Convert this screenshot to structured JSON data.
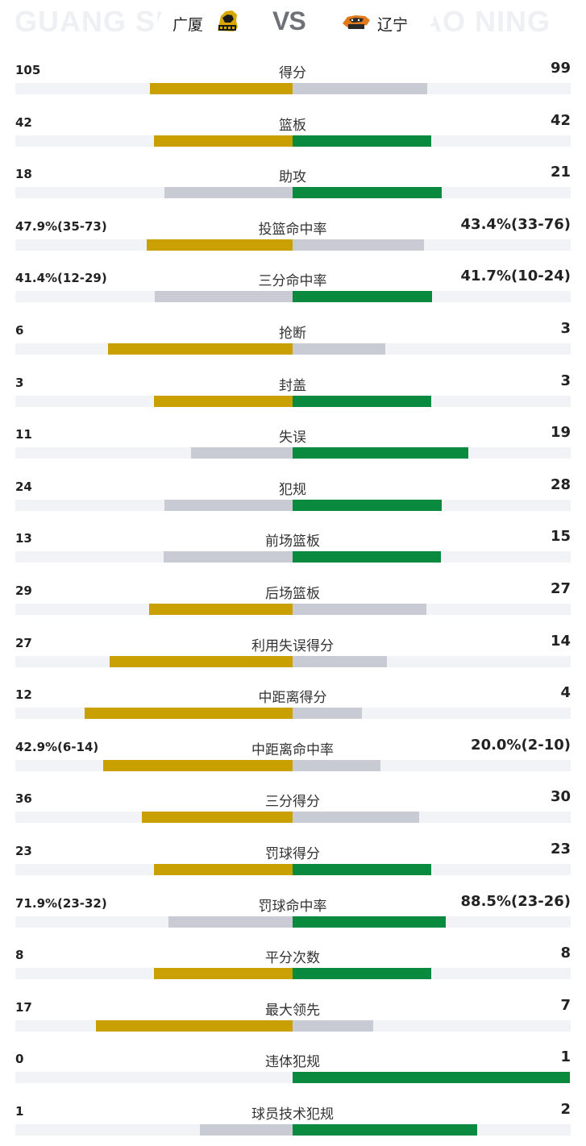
{
  "header": {
    "home_bg_text": "GUANG SH",
    "away_bg_text": "LIAO NING",
    "home_name": "广厦",
    "away_name": "辽宁",
    "vs": "VS",
    "home_logo_icon": "lion-logo-icon",
    "away_logo_icon": "leopard-logo-icon"
  },
  "colors": {
    "home_win": "#c9a002",
    "away_win": "#0a8a3e",
    "lose": "#c8cad4",
    "track": "#f2f3f7"
  },
  "stats": [
    {
      "label": "得分",
      "home": "105",
      "away": "99",
      "home_frac": 0.515,
      "away_frac": 0.485,
      "winner": "home"
    },
    {
      "label": "篮板",
      "home": "42",
      "away": "42",
      "home_frac": 0.5,
      "away_frac": 0.5,
      "winner": "tie"
    },
    {
      "label": "助攻",
      "home": "18",
      "away": "21",
      "home_frac": 0.462,
      "away_frac": 0.538,
      "winner": "away"
    },
    {
      "label": "投篮命中率",
      "home": "47.9%(35-73)",
      "away": "43.4%(33-76)",
      "home_frac": 0.525,
      "away_frac": 0.475,
      "winner": "home"
    },
    {
      "label": "三分命中率",
      "home": "41.4%(12-29)",
      "away": "41.7%(10-24)",
      "home_frac": 0.498,
      "away_frac": 0.502,
      "winner": "away"
    },
    {
      "label": "抢断",
      "home": "6",
      "away": "3",
      "home_frac": 0.667,
      "away_frac": 0.333,
      "winner": "home"
    },
    {
      "label": "封盖",
      "home": "3",
      "away": "3",
      "home_frac": 0.5,
      "away_frac": 0.5,
      "winner": "tie"
    },
    {
      "label": "失误",
      "home": "11",
      "away": "19",
      "home_frac": 0.367,
      "away_frac": 0.633,
      "winner": "away"
    },
    {
      "label": "犯规",
      "home": "24",
      "away": "28",
      "home_frac": 0.462,
      "away_frac": 0.538,
      "winner": "away"
    },
    {
      "label": "前场篮板",
      "home": "13",
      "away": "15",
      "home_frac": 0.464,
      "away_frac": 0.536,
      "winner": "away"
    },
    {
      "label": "后场篮板",
      "home": "29",
      "away": "27",
      "home_frac": 0.518,
      "away_frac": 0.482,
      "winner": "home"
    },
    {
      "label": "利用失误得分",
      "home": "27",
      "away": "14",
      "home_frac": 0.659,
      "away_frac": 0.341,
      "winner": "home"
    },
    {
      "label": "中距离得分",
      "home": "12",
      "away": "4",
      "home_frac": 0.75,
      "away_frac": 0.25,
      "winner": "home"
    },
    {
      "label": "中距离命中率",
      "home": "42.9%(6-14)",
      "away": "20.0%(2-10)",
      "home_frac": 0.682,
      "away_frac": 0.318,
      "winner": "home"
    },
    {
      "label": "三分得分",
      "home": "36",
      "away": "30",
      "home_frac": 0.545,
      "away_frac": 0.455,
      "winner": "home"
    },
    {
      "label": "罚球得分",
      "home": "23",
      "away": "23",
      "home_frac": 0.5,
      "away_frac": 0.5,
      "winner": "tie"
    },
    {
      "label": "罚球命中率",
      "home": "71.9%(23-32)",
      "away": "88.5%(23-26)",
      "home_frac": 0.448,
      "away_frac": 0.552,
      "winner": "away"
    },
    {
      "label": "平分次数",
      "home": "8",
      "away": "8",
      "home_frac": 0.5,
      "away_frac": 0.5,
      "winner": "tie"
    },
    {
      "label": "最大领先",
      "home": "17",
      "away": "7",
      "home_frac": 0.708,
      "away_frac": 0.292,
      "winner": "home"
    },
    {
      "label": "违体犯规",
      "home": "0",
      "away": "1",
      "home_frac": 0.0,
      "away_frac": 1.0,
      "winner": "away"
    },
    {
      "label": "球员技术犯规",
      "home": "1",
      "away": "2",
      "home_frac": 0.333,
      "away_frac": 0.667,
      "winner": "away"
    }
  ]
}
